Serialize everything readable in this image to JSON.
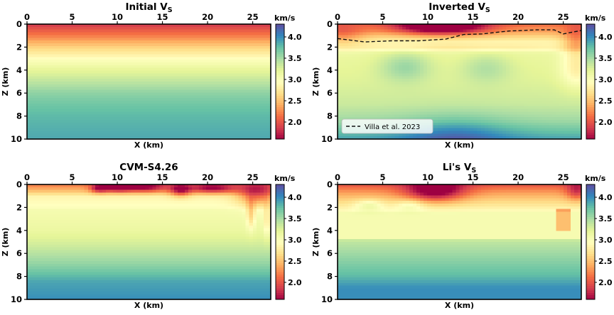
{
  "colorbar": {
    "unit": "km/s",
    "ticks": [
      "2.0",
      "2.5",
      "3.0",
      "3.5",
      "4.0"
    ],
    "colors": {
      "low": "#9e0142",
      "high": "#3288bd"
    }
  },
  "chart_data": [
    {
      "type": "heatmap",
      "title": "Initial V",
      "title_sub": "S",
      "xlabel": "X (km)",
      "ylabel": "Z (km)",
      "xticks": [
        "0",
        "5",
        "10",
        "15",
        "20",
        "25"
      ],
      "yticks": [
        "0",
        "2",
        "4",
        "6",
        "8",
        "10"
      ],
      "xlim": [
        0,
        27
      ],
      "ylim": [
        10,
        0
      ],
      "clim": [
        1.6,
        4.3
      ],
      "depth_profile": [
        {
          "z": 0,
          "vs": 1.85
        },
        {
          "z": 1,
          "vs": 2.2
        },
        {
          "z": 2,
          "vs": 2.6
        },
        {
          "z": 3,
          "vs": 2.95
        },
        {
          "z": 4,
          "vs": 3.2
        },
        {
          "z": 5,
          "vs": 3.4
        },
        {
          "z": 6,
          "vs": 3.6
        },
        {
          "z": 7,
          "vs": 3.72
        },
        {
          "z": 8,
          "vs": 3.8
        },
        {
          "z": 10,
          "vs": 3.88
        }
      ]
    },
    {
      "type": "heatmap",
      "title": "Inverted V",
      "title_sub": "S",
      "xlabel": "X (km)",
      "ylabel": "Z (km)",
      "xticks": [
        "0",
        "5",
        "10",
        "15",
        "20",
        "25"
      ],
      "yticks": [
        "0",
        "2",
        "4",
        "6",
        "8",
        "10"
      ],
      "xlim": [
        0,
        27
      ],
      "ylim": [
        10,
        0
      ],
      "clim": [
        1.6,
        4.3
      ],
      "legend": {
        "label": "Villa et al. 2023",
        "placement": "bottom-left"
      },
      "villa_line": {
        "x": [
          0,
          3,
          6,
          9,
          12,
          14,
          16,
          19,
          22,
          24,
          25,
          27
        ],
        "z": [
          1.25,
          1.55,
          1.45,
          1.45,
          1.3,
          0.9,
          0.85,
          0.6,
          0.5,
          0.5,
          0.85,
          0.55
        ]
      }
    },
    {
      "type": "heatmap",
      "title": "CVM-S4.26",
      "xlabel": "X (km)",
      "ylabel": "Z (km)",
      "xticks": [
        "0",
        "5",
        "10",
        "15",
        "20",
        "25"
      ],
      "yticks": [
        "0",
        "2",
        "4",
        "6",
        "8",
        "10"
      ],
      "xlim": [
        0,
        27
      ],
      "ylim": [
        10,
        0
      ],
      "clim": [
        1.6,
        4.3
      ]
    },
    {
      "type": "heatmap",
      "title": "Li's V",
      "title_sub": "S",
      "xlabel": "X (km)",
      "ylabel": "Z (km)",
      "xticks": [
        "0",
        "5",
        "10",
        "15",
        "20",
        "25"
      ],
      "yticks": [
        "0",
        "2",
        "4",
        "6",
        "8",
        "10"
      ],
      "xlim": [
        0,
        27
      ],
      "ylim": [
        10,
        0
      ],
      "clim": [
        1.6,
        4.3
      ]
    }
  ]
}
